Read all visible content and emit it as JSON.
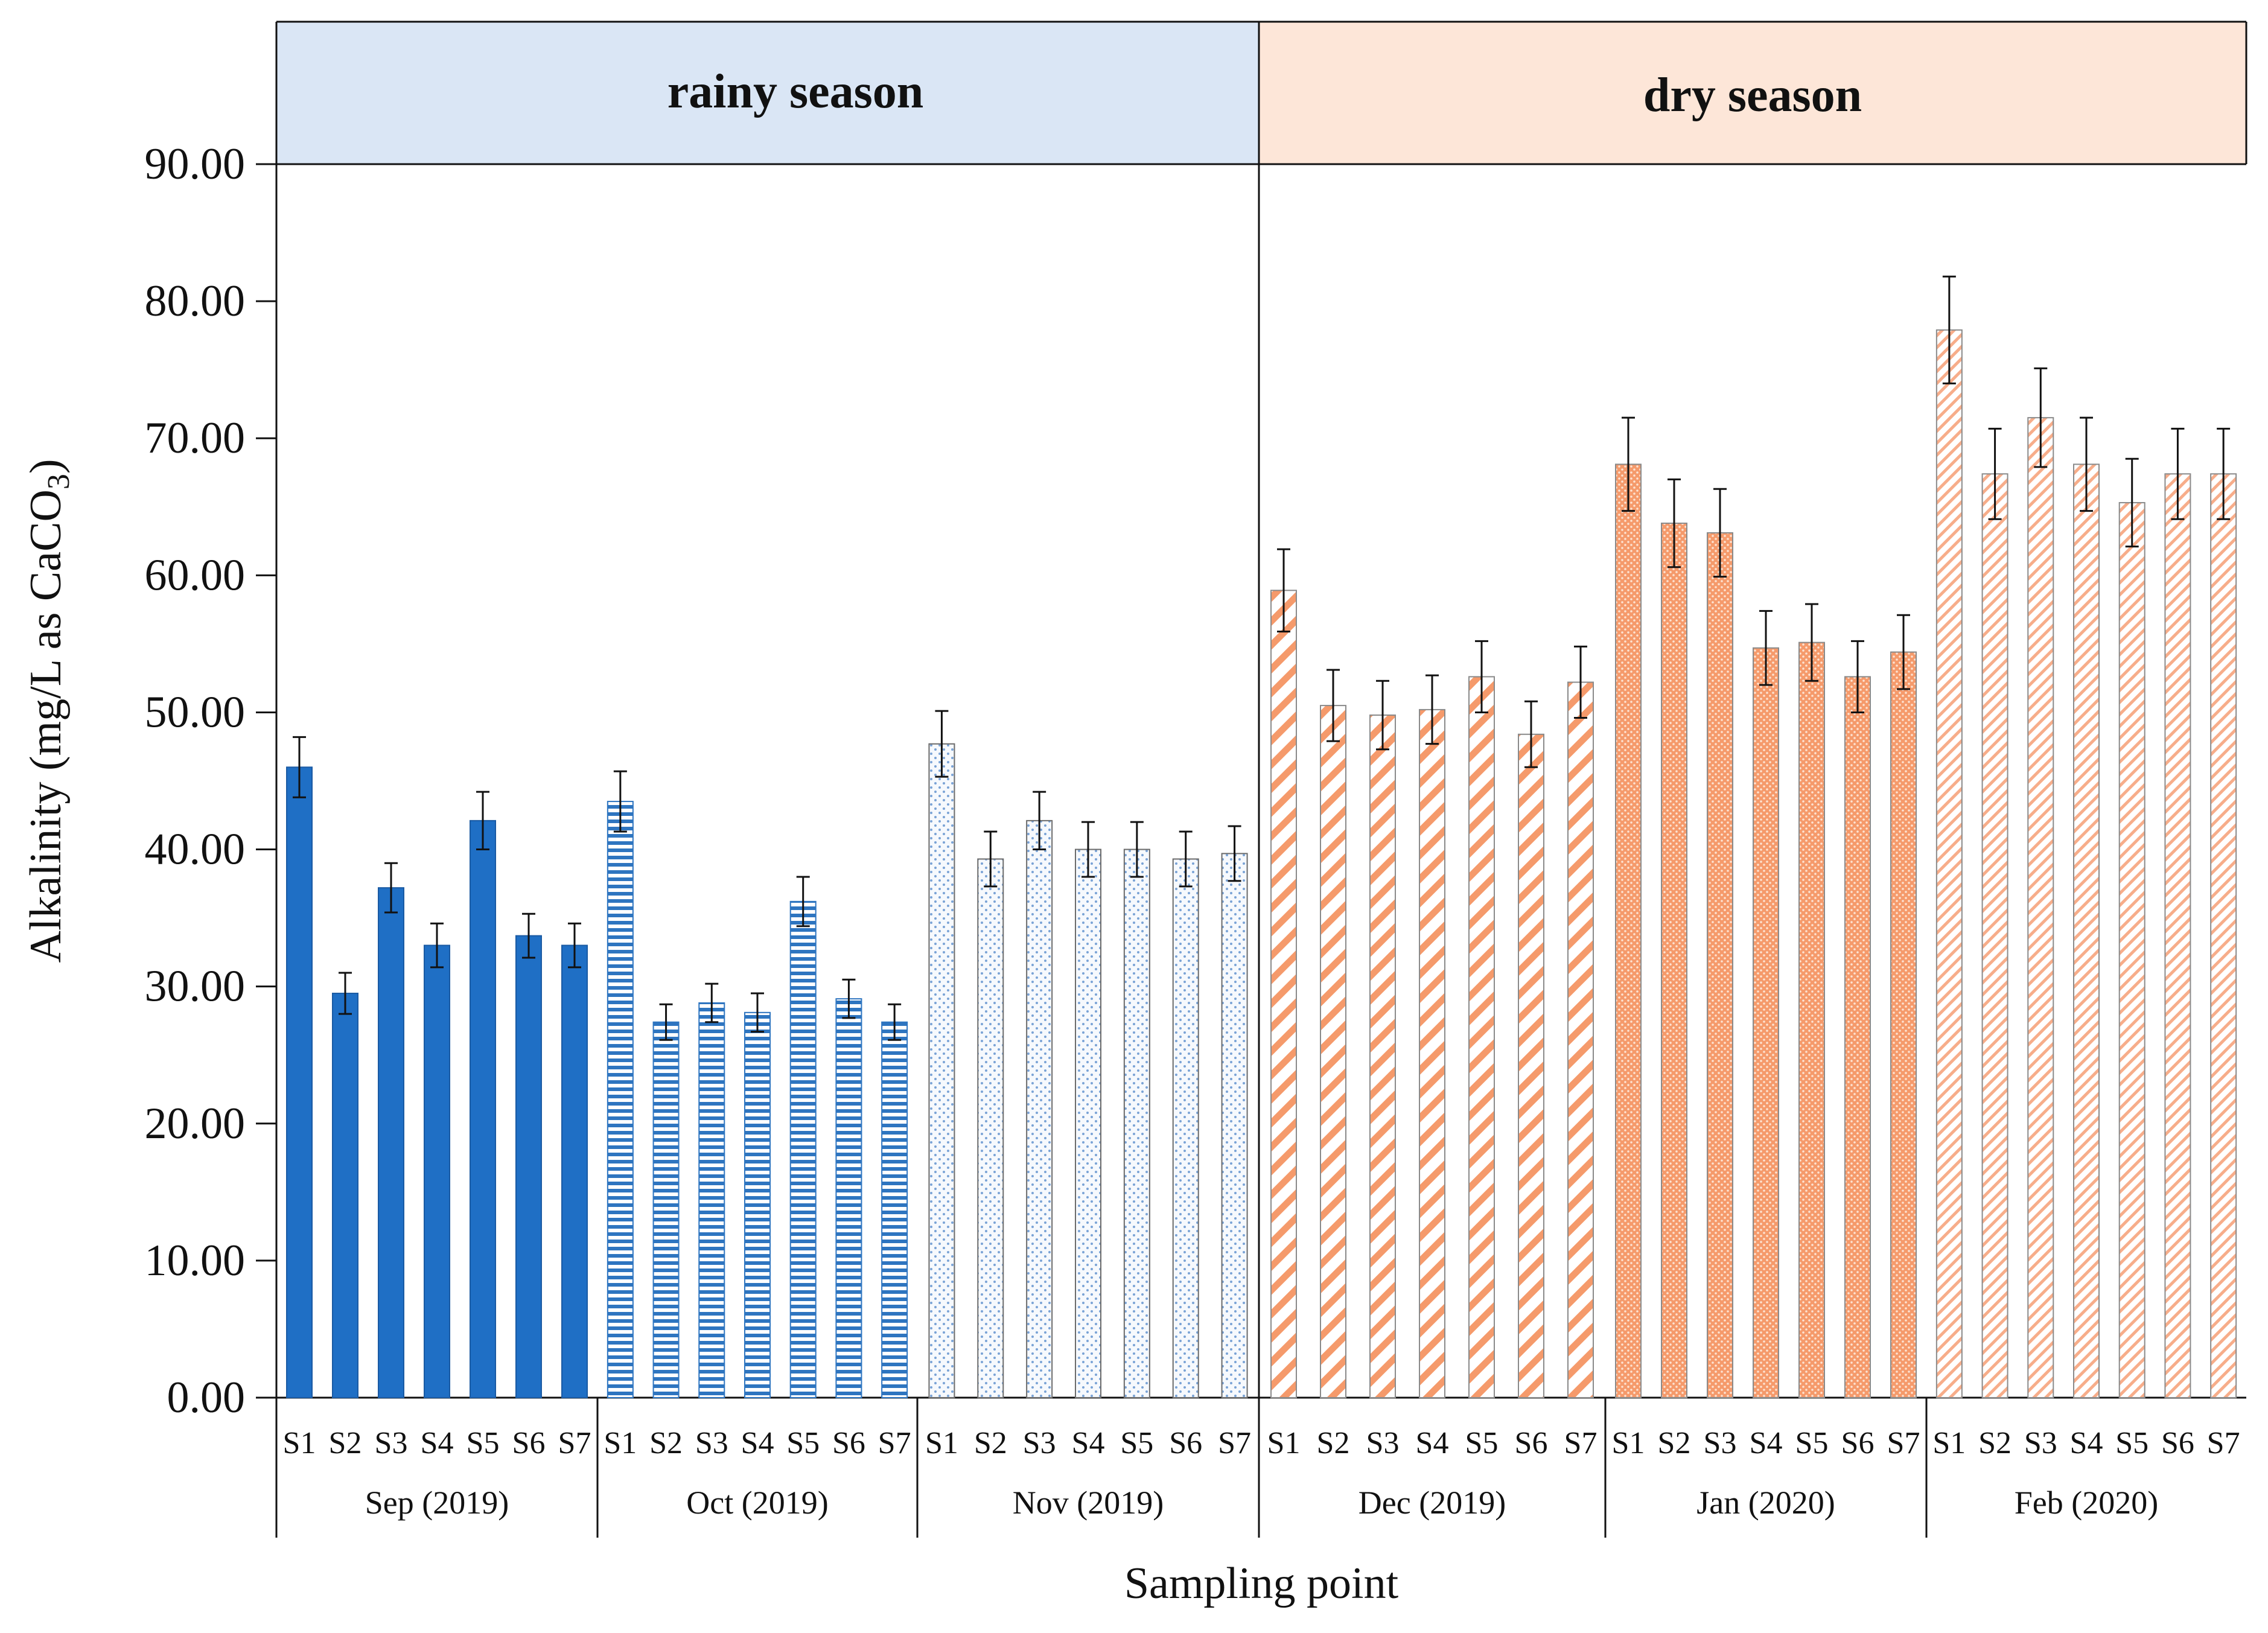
{
  "chart_data": {
    "type": "bar",
    "xlabel": "Sampling point",
    "ylabel": "Alkalinity (mg/L as CaCO",
    "ylabel_subscript": "3",
    "ylabel_suffix": ")",
    "ylim": [
      0,
      90
    ],
    "yticks": [
      "0.00",
      "10.00",
      "20.00",
      "30.00",
      "40.00",
      "50.00",
      "60.00",
      "70.00",
      "80.00",
      "90.00"
    ],
    "seasons": [
      {
        "label": "rainy season",
        "fill": "#dae6f5"
      },
      {
        "label": "dry season",
        "fill": "#fde6d8"
      }
    ],
    "sampling_points": [
      "S1",
      "S2",
      "S3",
      "S4",
      "S5",
      "S6",
      "S7"
    ],
    "groups": [
      {
        "month": "Sep (2019)",
        "season": 0,
        "pattern": "solid",
        "color": "#1f6fc5",
        "values": [
          46.0,
          29.5,
          37.2,
          33.0,
          42.1,
          33.7,
          33.0
        ],
        "errors": [
          2.2,
          1.5,
          1.8,
          1.6,
          2.1,
          1.6,
          1.6
        ]
      },
      {
        "month": "Oct (2019)",
        "season": 0,
        "pattern": "hlines",
        "color": "#2e75c0",
        "values": [
          43.5,
          27.4,
          28.8,
          28.1,
          36.2,
          29.1,
          27.4
        ],
        "errors": [
          2.2,
          1.3,
          1.4,
          1.4,
          1.8,
          1.4,
          1.3
        ]
      },
      {
        "month": "Nov (2019)",
        "season": 0,
        "pattern": "dots",
        "color": "#5b8fcf",
        "values": [
          47.7,
          39.3,
          42.1,
          40.0,
          40.0,
          39.3,
          39.7
        ],
        "errors": [
          2.4,
          2.0,
          2.1,
          2.0,
          2.0,
          2.0,
          2.0
        ]
      },
      {
        "month": "Dec (2019)",
        "season": 1,
        "pattern": "diag-wide",
        "color": "#f59a6b",
        "values": [
          58.9,
          50.5,
          49.8,
          50.2,
          52.6,
          48.4,
          52.2
        ],
        "errors": [
          3.0,
          2.6,
          2.5,
          2.5,
          2.6,
          2.4,
          2.6
        ]
      },
      {
        "month": "Jan (2020)",
        "season": 1,
        "pattern": "dots-dense",
        "color": "#f59a6b",
        "values": [
          68.1,
          63.8,
          63.1,
          54.7,
          55.1,
          52.6,
          54.4
        ],
        "errors": [
          3.4,
          3.2,
          3.2,
          2.7,
          2.8,
          2.6,
          2.7
        ]
      },
      {
        "month": "Feb (2020)",
        "season": 1,
        "pattern": "diag-fine",
        "color": "#f7ad8a",
        "values": [
          77.9,
          67.4,
          71.5,
          68.1,
          65.3,
          67.4,
          67.4
        ],
        "errors": [
          3.9,
          3.3,
          3.6,
          3.4,
          3.2,
          3.3,
          3.3
        ]
      }
    ]
  }
}
